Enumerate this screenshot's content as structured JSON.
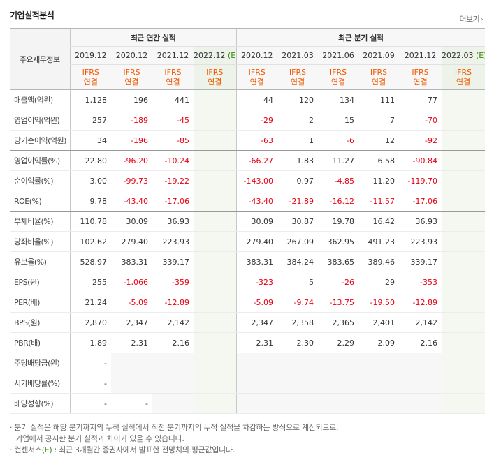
{
  "header": {
    "title": "기업실적분석",
    "more_label": "더보기",
    "more_arrow": "›"
  },
  "table": {
    "row_header_label": "주요재무정보",
    "groups": {
      "annual": "최근 연간 실적",
      "quarterly": "최근 분기 실적"
    },
    "annual_periods": [
      "2019.12",
      "2020.12",
      "2021.12",
      "2022.12"
    ],
    "quarter_periods": [
      "2020.12",
      "2021.03",
      "2021.06",
      "2021.09",
      "2021.12",
      "2022.03"
    ],
    "estimate_mark": "(E)",
    "ifrs_line1": "IFRS",
    "ifrs_line2": "연결",
    "rows": [
      {
        "label": "매출액(억원)",
        "annual": [
          "1,128",
          "196",
          "441",
          ""
        ],
        "quarterly": [
          "44",
          "120",
          "134",
          "111",
          "77",
          ""
        ]
      },
      {
        "label": "영업이익(억원)",
        "annual": [
          "257",
          "-189",
          "-45",
          ""
        ],
        "quarterly": [
          "-29",
          "2",
          "15",
          "7",
          "-70",
          ""
        ]
      },
      {
        "label": "당기순이익(억원)",
        "annual": [
          "34",
          "-196",
          "-85",
          ""
        ],
        "quarterly": [
          "-63",
          "1",
          "-6",
          "12",
          "-92",
          ""
        ]
      },
      {
        "label": "영업이익률(%)",
        "annual": [
          "22.80",
          "-96.20",
          "-10.24",
          ""
        ],
        "quarterly": [
          "-66.27",
          "1.83",
          "11.27",
          "6.58",
          "-90.84",
          ""
        ]
      },
      {
        "label": "순이익률(%)",
        "annual": [
          "3.00",
          "-99.73",
          "-19.22",
          ""
        ],
        "quarterly": [
          "-143.00",
          "0.97",
          "-4.85",
          "11.20",
          "-119.70",
          ""
        ]
      },
      {
        "label": "ROE(%)",
        "annual": [
          "9.78",
          "-43.40",
          "-17.06",
          ""
        ],
        "quarterly": [
          "-43.40",
          "-21.89",
          "-16.12",
          "-11.57",
          "-17.06",
          ""
        ]
      },
      {
        "label": "부채비율(%)",
        "annual": [
          "110.78",
          "30.09",
          "36.93",
          ""
        ],
        "quarterly": [
          "30.09",
          "30.87",
          "19.78",
          "16.42",
          "36.93",
          ""
        ]
      },
      {
        "label": "당좌비율(%)",
        "annual": [
          "102.62",
          "279.40",
          "223.93",
          ""
        ],
        "quarterly": [
          "279.40",
          "267.09",
          "362.95",
          "491.23",
          "223.93",
          ""
        ]
      },
      {
        "label": "유보율(%)",
        "annual": [
          "528.97",
          "383.31",
          "339.17",
          ""
        ],
        "quarterly": [
          "383.31",
          "384.24",
          "383.65",
          "389.46",
          "339.17",
          ""
        ]
      },
      {
        "label": "EPS(원)",
        "annual": [
          "255",
          "-1,066",
          "-359",
          ""
        ],
        "quarterly": [
          "-323",
          "5",
          "-26",
          "29",
          "-353",
          ""
        ]
      },
      {
        "label": "PER(배)",
        "annual": [
          "21.24",
          "-5.09",
          "-12.89",
          ""
        ],
        "quarterly": [
          "-5.09",
          "-9.74",
          "-13.75",
          "-19.50",
          "-12.89",
          ""
        ]
      },
      {
        "label": "BPS(원)",
        "annual": [
          "2,870",
          "2,347",
          "2,142",
          ""
        ],
        "quarterly": [
          "2,347",
          "2,358",
          "2,365",
          "2,401",
          "2,142",
          ""
        ]
      },
      {
        "label": "PBR(배)",
        "annual": [
          "1.89",
          "2.31",
          "2.16",
          ""
        ],
        "quarterly": [
          "2.31",
          "2.30",
          "2.29",
          "2.09",
          "2.16",
          ""
        ]
      },
      {
        "label": "주당배당금(원)",
        "annual": [
          "-",
          "",
          "",
          ""
        ],
        "quarterly": [
          "",
          "",
          "",
          "",
          "",
          ""
        ]
      },
      {
        "label": "시가배당률(%)",
        "annual": [
          "-",
          "",
          "",
          ""
        ],
        "quarterly": [
          "",
          "",
          "",
          "",
          "",
          ""
        ]
      },
      {
        "label": "배당성향(%)",
        "annual": [
          "-",
          "-",
          "",
          ""
        ],
        "quarterly": [
          "",
          "",
          "",
          "",
          "",
          ""
        ]
      }
    ]
  },
  "notes": {
    "line1": "· 분기 실적은 해당 분기까지의 누적 실적에서 직전 분기까지의 누적 실적을 차감하는 방식으로 계산되므로,",
    "line2": "기업에서 공시한 분기 실적과 차이가 있을 수 있습니다.",
    "line3_pre": "· 컨센서스",
    "line3_e": "(E)",
    "line3_post": " : 최근 3개월간 증권사에서 발표한 전망치의 평균값입니다."
  },
  "colors": {
    "negative": "#e60012",
    "ifrs": "#f05a00",
    "estimate": "#3a8b0e"
  }
}
